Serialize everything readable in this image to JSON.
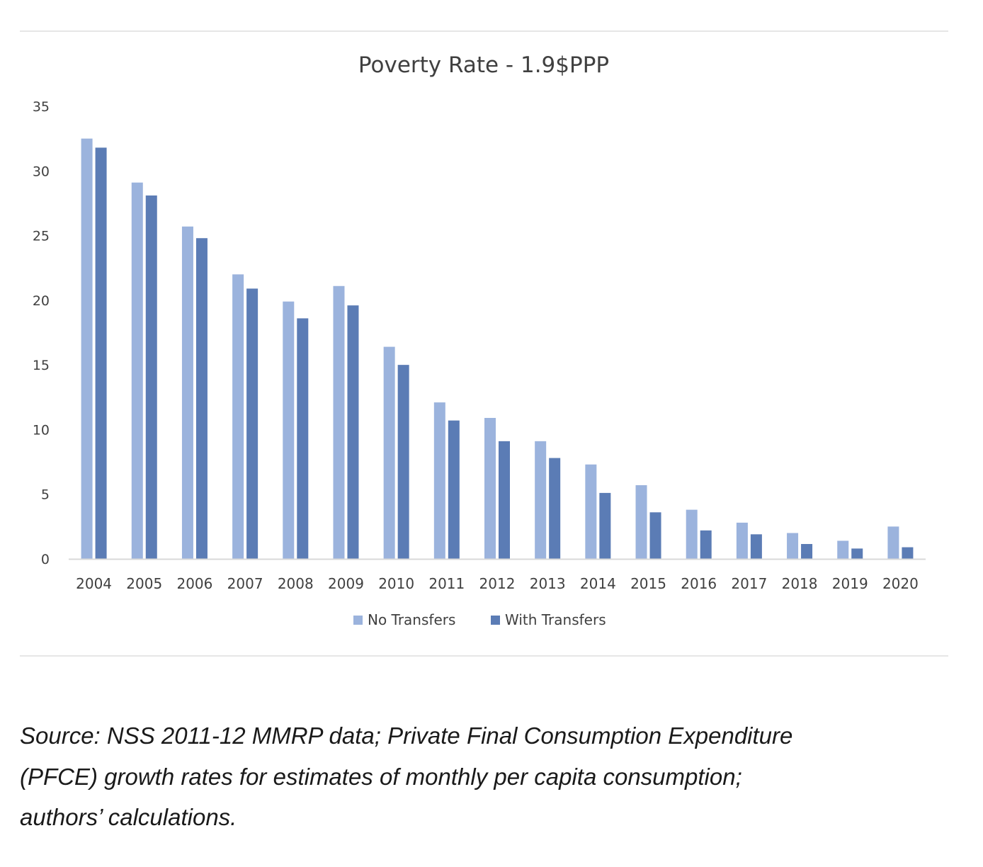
{
  "chart_data": {
    "type": "bar",
    "title": "Poverty Rate - 1.9$PPP",
    "xlabel": "",
    "ylabel": "",
    "ylim": [
      0,
      35
    ],
    "yticks": [
      0,
      5,
      10,
      15,
      20,
      25,
      30,
      35
    ],
    "grid": false,
    "legend_position": "bottom-center",
    "categories": [
      "2004",
      "2005",
      "2006",
      "2007",
      "2008",
      "2009",
      "2010",
      "2011",
      "2012",
      "2013",
      "2014",
      "2015",
      "2016",
      "2017",
      "2018",
      "2019",
      "2020"
    ],
    "series": [
      {
        "name": "No Transfers",
        "color": "#9bb3dd",
        "values": [
          32.5,
          29.1,
          25.7,
          22.0,
          19.9,
          21.1,
          16.4,
          12.1,
          10.9,
          9.1,
          7.3,
          5.7,
          3.8,
          2.8,
          2.0,
          1.4,
          2.5
        ]
      },
      {
        "name": "With Transfers",
        "color": "#5b7cb5",
        "values": [
          31.8,
          28.1,
          24.8,
          20.9,
          18.6,
          19.6,
          15.0,
          10.7,
          9.1,
          7.8,
          5.1,
          3.6,
          2.2,
          1.9,
          1.15,
          0.8,
          0.9
        ]
      }
    ],
    "axis_color": "#d9d9d9"
  },
  "caption": {
    "lines": [
      "Source: NSS 2011-12 MMRP data; Private Final Consumption Expenditure",
      "(PFCE)  growth rates for estimates of monthly per capita consumption;",
      "authors’ calculations."
    ]
  }
}
